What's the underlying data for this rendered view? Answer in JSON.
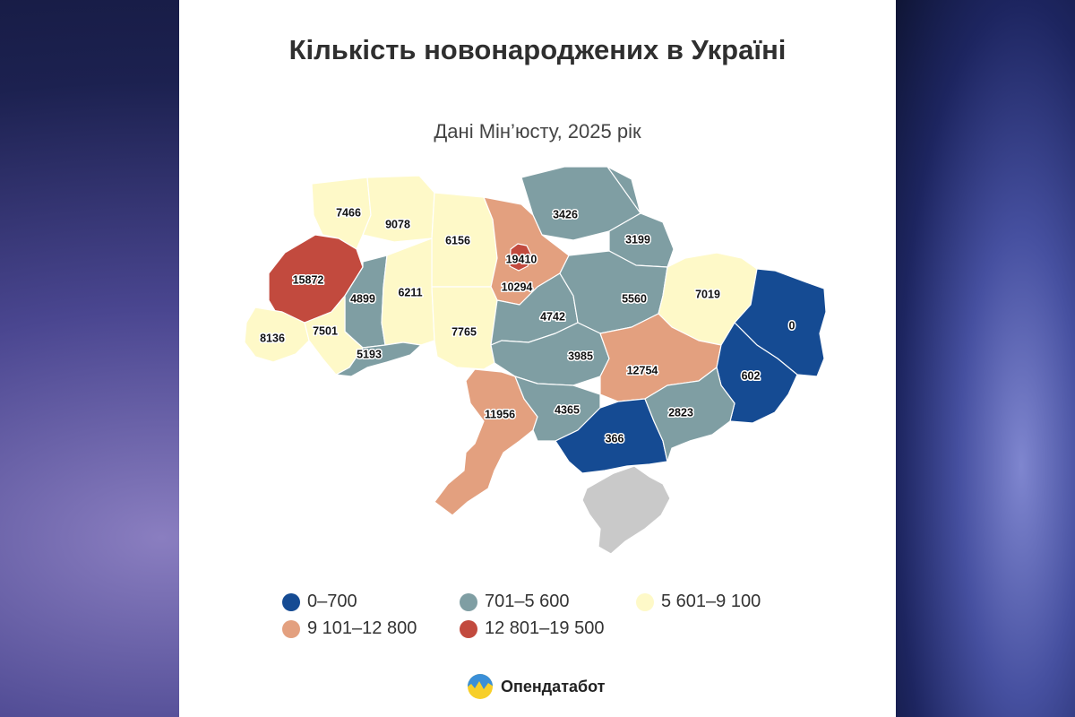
{
  "title": "Кількість новонароджених в Україні",
  "subtitle": "Дані Мін’юсту, 2025 рік",
  "colors": {
    "0-700": "#154b93",
    "701-5600": "#7f9ea3",
    "5601-9100": "#fef9c8",
    "9101-12800": "#e3a07f",
    "12801-19500": "#c24a3e",
    "no_data": "#c9c9c9"
  },
  "legend": [
    {
      "label": "0–700",
      "color": "#154b93"
    },
    {
      "label": "701–5 600",
      "color": "#7f9ea3"
    },
    {
      "label": "5 601–9 100",
      "color": "#fef9c8"
    },
    {
      "label": "9 101–12 800",
      "color": "#e3a07f"
    },
    {
      "label": "12 801–19 500",
      "color": "#c24a3e"
    }
  ],
  "regions": [
    {
      "id": "volyn",
      "value": "7466"
    },
    {
      "id": "rivne",
      "value": "9078"
    },
    {
      "id": "zhytomyr",
      "value": "6156"
    },
    {
      "id": "kyiv-city",
      "value": "19410"
    },
    {
      "id": "kyiv-oblast",
      "value": "10294"
    },
    {
      "id": "chernihiv",
      "value": "3426"
    },
    {
      "id": "sumy",
      "value": "3199"
    },
    {
      "id": "lviv",
      "value": "15872"
    },
    {
      "id": "ternopil",
      "value": "4899"
    },
    {
      "id": "khmelnytskyi",
      "value": "6211"
    },
    {
      "id": "vinnytsia",
      "value": "7765"
    },
    {
      "id": "cherkasy",
      "value": "4742"
    },
    {
      "id": "poltava",
      "value": "5560"
    },
    {
      "id": "kharkiv",
      "value": "7019"
    },
    {
      "id": "luhansk",
      "value": "0"
    },
    {
      "id": "zakarpattia",
      "value": "8136"
    },
    {
      "id": "ivano-frankivsk",
      "value": "7501"
    },
    {
      "id": "chernivtsi",
      "value": "5193"
    },
    {
      "id": "kirovohrad",
      "value": "3985"
    },
    {
      "id": "dnipropetrovsk",
      "value": "12754"
    },
    {
      "id": "donetsk",
      "value": "602"
    },
    {
      "id": "odesa",
      "value": "11956"
    },
    {
      "id": "mykolaiv",
      "value": "4365"
    },
    {
      "id": "kherson",
      "value": "366"
    },
    {
      "id": "zaporizhzhia",
      "value": "2823"
    }
  ],
  "brand": {
    "name": "Опендатабот",
    "logo_icon": "opendatabot-logo-icon"
  }
}
